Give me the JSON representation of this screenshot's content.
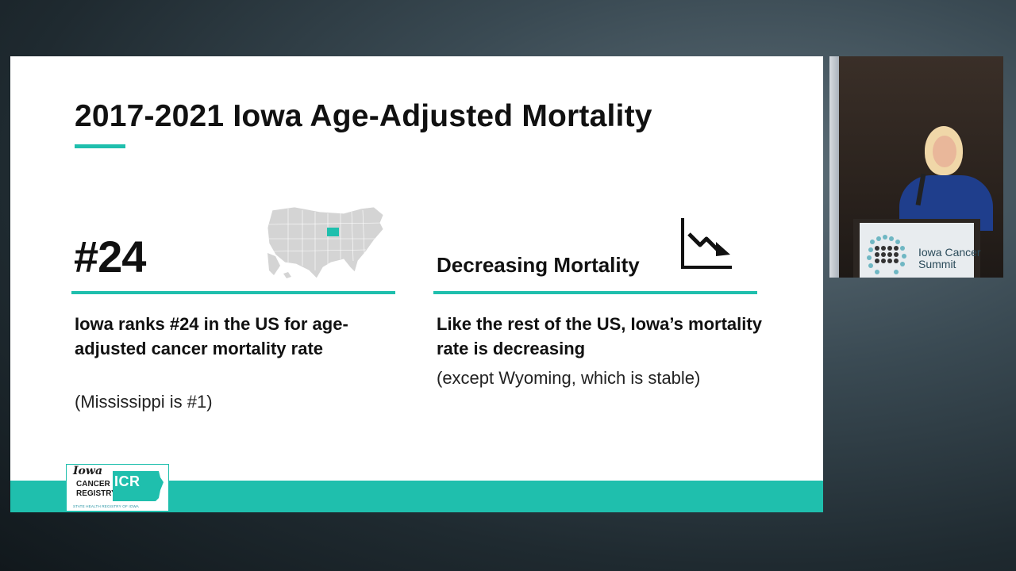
{
  "slide": {
    "title": "2017-2021 Iowa Age-Adjusted Mortality",
    "left": {
      "rank": "#24",
      "text": "Iowa ranks #24 in the US for age-adjusted cancer mortality rate",
      "note": "(Mississippi is #1)"
    },
    "right": {
      "heading": "Decreasing Mortality",
      "text": "Like the rest of the US, Iowa’s mortality rate is decreasing",
      "note": "(except Wyoming, which is stable)"
    },
    "logo": {
      "line1": "Iowa",
      "line2": "CANCER",
      "line3": "REGISTRY",
      "badge": "ICR",
      "tagline": "STATE HEALTH REGISTRY OF IOWA"
    },
    "colors": {
      "accent": "#1fbfad",
      "map_gray": "#d4d4d4",
      "map_highlight": "#1fbfad"
    },
    "icons": [
      "us-map-icon",
      "decreasing-trend-icon"
    ]
  },
  "speaker_video": {
    "podium_text": "Iowa Cancer Summit"
  }
}
